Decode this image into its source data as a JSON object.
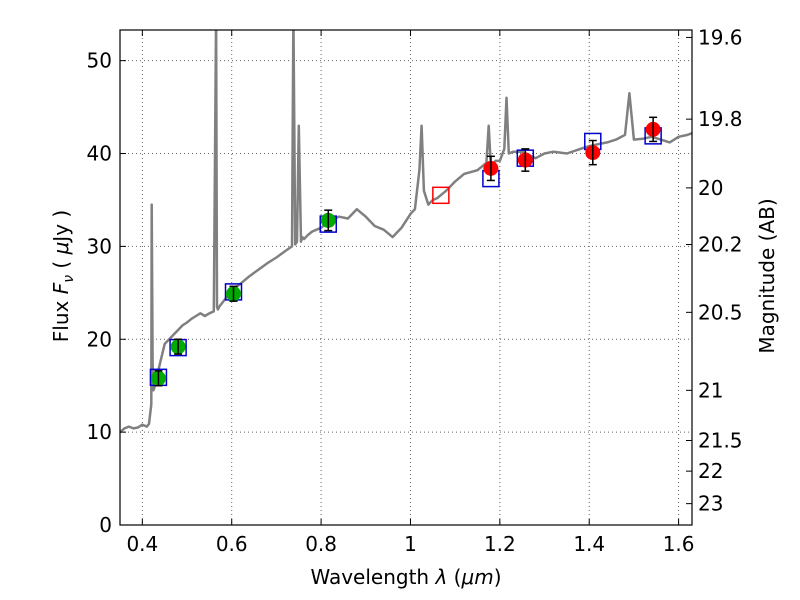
{
  "chart_data": {
    "type": "scatter",
    "title": "",
    "xlabel": "Wavelength  λ (μm)",
    "ylabel": "Flux  F_ν  ( μJy )",
    "ylabel_parts": {
      "prefix": "Flux  ",
      "symbol": "F",
      "subscript": "ν",
      "paren_open": "  ( ",
      "unit_symbol": "μ",
      "unit": "Jy",
      "paren_close": " )"
    },
    "xlabel_parts": {
      "prefix": "Wavelength  ",
      "symbol": "λ",
      "paren_open": " (",
      "unit": "μm",
      "paren_close": ")"
    },
    "y2label": "Magnitude (AB)",
    "xlim": [
      0.35,
      1.63
    ],
    "ylim": [
      0,
      53.3
    ],
    "grid": true,
    "x_ticks": [
      0.4,
      0.6,
      0.8,
      1.0,
      1.2,
      1.4,
      1.6
    ],
    "x_tick_labels": [
      "0.4",
      "0.6",
      "0.8",
      "1",
      "1.2",
      "1.4",
      "1.6"
    ],
    "y_ticks": [
      0,
      10,
      20,
      30,
      40,
      50
    ],
    "y_tick_labels": [
      "0",
      "10",
      "20",
      "30",
      "40",
      "50"
    ],
    "y2_ticks": [
      {
        "label": "19.6",
        "flux": 52.5
      },
      {
        "label": "19.8",
        "flux": 43.7
      },
      {
        "label": "20",
        "flux": 36.3
      },
      {
        "label": "20.2",
        "flux": 30.2
      },
      {
        "label": "20.5",
        "flux": 22.9
      },
      {
        "label": "21",
        "flux": 14.5
      },
      {
        "label": "21.5",
        "flux": 9.1
      },
      {
        "label": "22",
        "flux": 5.8
      },
      {
        "label": "23",
        "flux": 2.3
      }
    ],
    "colors": {
      "model": "#808080",
      "green": "#00aa00",
      "red": "#ff0000",
      "blue": "#0000cc",
      "error": "#000000"
    },
    "model_spectrum": {
      "x": [
        0.35,
        0.36,
        0.37,
        0.38,
        0.39,
        0.4,
        0.41,
        0.415,
        0.42,
        0.421,
        0.423,
        0.425,
        0.428,
        0.43,
        0.435,
        0.44,
        0.45,
        0.46,
        0.47,
        0.48,
        0.49,
        0.5,
        0.51,
        0.52,
        0.53,
        0.54,
        0.55,
        0.56,
        0.565,
        0.567,
        0.569,
        0.572,
        0.58,
        0.6,
        0.62,
        0.64,
        0.66,
        0.68,
        0.7,
        0.72,
        0.735,
        0.738,
        0.742,
        0.746,
        0.75,
        0.755,
        0.758,
        0.762,
        0.77,
        0.78,
        0.8,
        0.82,
        0.84,
        0.86,
        0.88,
        0.9,
        0.92,
        0.94,
        0.96,
        0.98,
        1.0,
        1.01,
        1.02,
        1.025,
        1.03,
        1.04,
        1.05,
        1.06,
        1.08,
        1.1,
        1.12,
        1.15,
        1.17,
        1.175,
        1.18,
        1.19,
        1.2,
        1.21,
        1.215,
        1.22,
        1.23,
        1.25,
        1.28,
        1.3,
        1.32,
        1.35,
        1.38,
        1.4,
        1.42,
        1.44,
        1.46,
        1.48,
        1.49,
        1.5,
        1.52,
        1.54,
        1.56,
        1.58,
        1.6,
        1.62,
        1.63
      ],
      "y": [
        10.0,
        10.4,
        10.6,
        10.4,
        10.5,
        10.8,
        10.6,
        10.9,
        13.0,
        34.5,
        17.5,
        14.5,
        15.0,
        15.8,
        16.5,
        17.5,
        19.5,
        20.0,
        20.5,
        21.0,
        21.5,
        21.8,
        22.2,
        22.5,
        22.8,
        22.5,
        22.8,
        23.0,
        55.0,
        23.5,
        23.2,
        23.5,
        24.0,
        25.2,
        26.0,
        26.8,
        27.5,
        28.2,
        28.8,
        29.5,
        30.0,
        55.0,
        30.2,
        30.5,
        43.0,
        30.5,
        31.0,
        30.8,
        31.2,
        31.6,
        32.0,
        32.8,
        33.2,
        33.0,
        34.0,
        33.2,
        32.2,
        31.8,
        31.0,
        32.0,
        33.5,
        34.0,
        38.2,
        43.0,
        36.0,
        34.5,
        35.0,
        35.2,
        36.0,
        37.0,
        37.8,
        38.2,
        39.0,
        43.0,
        38.5,
        39.2,
        39.2,
        40.5,
        46.0,
        40.0,
        40.2,
        40.2,
        39.5,
        40.0,
        40.2,
        40.0,
        40.5,
        40.8,
        41.0,
        41.2,
        41.5,
        42.0,
        46.5,
        41.5,
        41.6,
        41.8,
        41.5,
        41.2,
        41.8,
        42.0,
        42.2
      ]
    },
    "series": [
      {
        "marker": "circle",
        "color": "#00aa00",
        "points": [
          {
            "x": 0.436,
            "y": 15.8,
            "err": 0.8
          },
          {
            "x": 0.48,
            "y": 19.2,
            "err": 0.8
          },
          {
            "x": 0.604,
            "y": 24.9,
            "err": 0.8
          },
          {
            "x": 0.816,
            "y": 32.8,
            "err": 1.1
          }
        ]
      },
      {
        "marker": "circle",
        "color": "#ff0000",
        "points": [
          {
            "x": 1.18,
            "y": 38.4,
            "err": 1.3
          },
          {
            "x": 1.257,
            "y": 39.3,
            "err": 1.2
          },
          {
            "x": 1.408,
            "y": 40.1,
            "err": 1.3
          },
          {
            "x": 1.543,
            "y": 42.6,
            "err": 1.3
          }
        ]
      },
      {
        "marker": "square",
        "color": "#0000cc",
        "points": [
          {
            "x": 0.436,
            "y": 15.9
          },
          {
            "x": 0.48,
            "y": 19.1
          },
          {
            "x": 0.604,
            "y": 25.1
          },
          {
            "x": 0.816,
            "y": 32.4
          },
          {
            "x": 1.18,
            "y": 37.3
          },
          {
            "x": 1.257,
            "y": 39.5
          },
          {
            "x": 1.408,
            "y": 41.3
          },
          {
            "x": 1.543,
            "y": 41.9
          }
        ]
      },
      {
        "marker": "square",
        "color": "#ff0000",
        "points": [
          {
            "x": 1.068,
            "y": 35.5
          }
        ]
      }
    ]
  }
}
